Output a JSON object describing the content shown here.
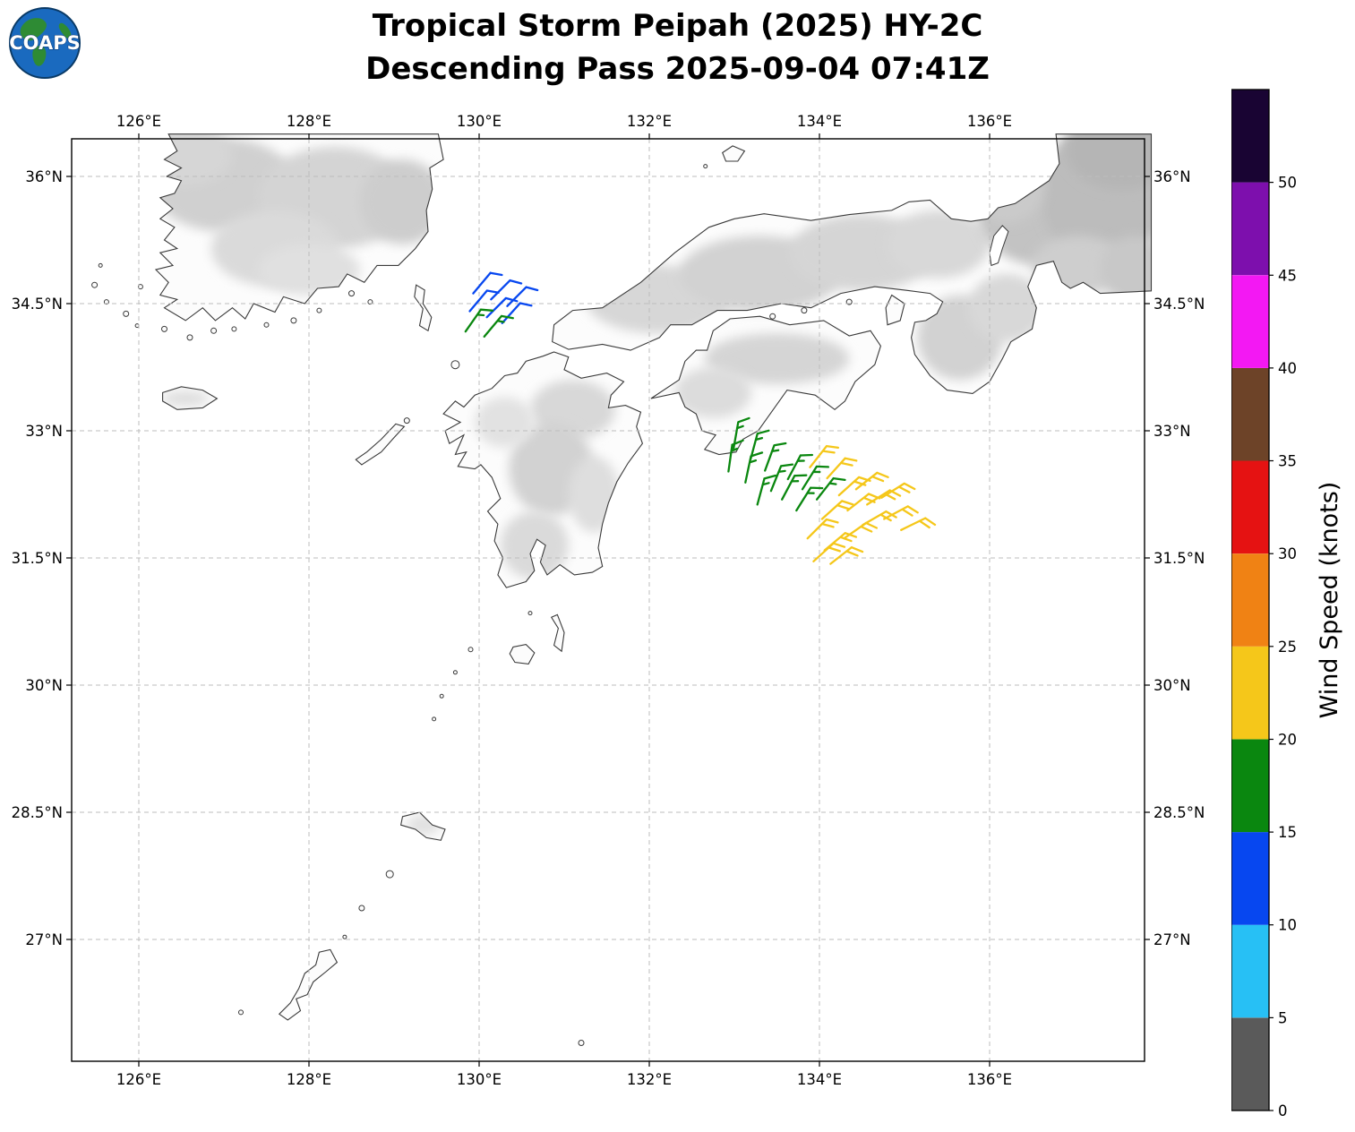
{
  "header": {
    "title_line1": "Tropical Storm Peipah (2025) HY-2C",
    "title_line2": "Descending Pass 2025-09-04 07:41Z"
  },
  "logo": {
    "text": "COAPS"
  },
  "map": {
    "lon_ticks": [
      {
        "lon": 126,
        "label": "126°E"
      },
      {
        "lon": 128,
        "label": "128°E"
      },
      {
        "lon": 130,
        "label": "130°E"
      },
      {
        "lon": 132,
        "label": "132°E"
      },
      {
        "lon": 134,
        "label": "134°E"
      },
      {
        "lon": 136,
        "label": "136°E"
      }
    ],
    "lat_ticks": [
      {
        "lat": 36,
        "label": "36°N"
      },
      {
        "lat": 34.5,
        "label": "34.5°N"
      },
      {
        "lat": 33,
        "label": "33°N"
      },
      {
        "lat": 31.5,
        "label": "31.5°N"
      },
      {
        "lat": 30,
        "label": "30°N"
      },
      {
        "lat": 28.5,
        "label": "28.5°N"
      },
      {
        "lat": 27,
        "label": "27°N"
      }
    ]
  },
  "colorbar": {
    "label": "Wind Speed (knots)",
    "vmin": 0,
    "vmax": 55,
    "ticks": [
      0,
      5,
      10,
      15,
      20,
      25,
      30,
      35,
      40,
      45,
      50
    ],
    "segments": [
      {
        "from": 0,
        "to": 5,
        "color": "#5a5a5a"
      },
      {
        "from": 5,
        "to": 10,
        "color": "#27c0f5"
      },
      {
        "from": 10,
        "to": 15,
        "color": "#0747f0"
      },
      {
        "from": 15,
        "to": 20,
        "color": "#0a870f"
      },
      {
        "from": 20,
        "to": 25,
        "color": "#f5c71a"
      },
      {
        "from": 25,
        "to": 30,
        "color": "#f08214"
      },
      {
        "from": 30,
        "to": 35,
        "color": "#e51212"
      },
      {
        "from": 35,
        "to": 40,
        "color": "#6d4328"
      },
      {
        "from": 40,
        "to": 45,
        "color": "#f318f3"
      },
      {
        "from": 45,
        "to": 50,
        "color": "#7d0fad"
      },
      {
        "from": 50,
        "to": 55,
        "color": "#190433"
      }
    ]
  },
  "chart_data": {
    "type": "wind_barb_map",
    "title": "Tropical Storm Peipah (2025) HY-2C Descending Pass 2025-09-04 07:41Z",
    "units": "knots",
    "lon_range": [
      125.2,
      137.8
    ],
    "lat_range": [
      25.6,
      36.4
    ],
    "barbs": [
      {
        "lon": 129.93,
        "lat": 34.62,
        "knots": 10,
        "dir_from_deg": 40
      },
      {
        "lon": 130.14,
        "lat": 34.55,
        "knots": 10,
        "dir_from_deg": 45
      },
      {
        "lon": 130.33,
        "lat": 34.47,
        "knots": 10,
        "dir_from_deg": 45
      },
      {
        "lon": 129.89,
        "lat": 34.41,
        "knots": 10,
        "dir_from_deg": 40
      },
      {
        "lon": 130.09,
        "lat": 34.34,
        "knots": 10,
        "dir_from_deg": 45
      },
      {
        "lon": 130.27,
        "lat": 34.27,
        "knots": 10,
        "dir_from_deg": 42
      },
      {
        "lon": 129.84,
        "lat": 34.17,
        "knots": 15,
        "dir_from_deg": 35
      },
      {
        "lon": 130.06,
        "lat": 34.11,
        "knots": 15,
        "dir_from_deg": 40
      },
      {
        "lon": 132.99,
        "lat": 32.79,
        "knots": 15,
        "dir_from_deg": 10
      },
      {
        "lon": 133.19,
        "lat": 32.66,
        "knots": 15,
        "dir_from_deg": 15
      },
      {
        "lon": 132.93,
        "lat": 32.52,
        "knots": 15,
        "dir_from_deg": 8
      },
      {
        "lon": 133.13,
        "lat": 32.39,
        "knots": 15,
        "dir_from_deg": 12
      },
      {
        "lon": 133.36,
        "lat": 32.53,
        "knots": 15,
        "dir_from_deg": 20
      },
      {
        "lon": 133.43,
        "lat": 32.29,
        "knots": 15,
        "dir_from_deg": 22
      },
      {
        "lon": 133.27,
        "lat": 32.13,
        "knots": 15,
        "dir_from_deg": 15
      },
      {
        "lon": 133.63,
        "lat": 32.43,
        "knots": 15,
        "dir_from_deg": 28
      },
      {
        "lon": 133.56,
        "lat": 32.19,
        "knots": 15,
        "dir_from_deg": 28
      },
      {
        "lon": 133.8,
        "lat": 32.31,
        "knots": 15,
        "dir_from_deg": 32
      },
      {
        "lon": 133.73,
        "lat": 32.06,
        "knots": 15,
        "dir_from_deg": 32
      },
      {
        "lon": 133.97,
        "lat": 32.19,
        "knots": 15,
        "dir_from_deg": 38
      },
      {
        "lon": 133.89,
        "lat": 32.57,
        "knots": 20,
        "dir_from_deg": 38
      },
      {
        "lon": 134.09,
        "lat": 32.44,
        "knots": 20,
        "dir_from_deg": 42
      },
      {
        "lon": 134.03,
        "lat": 31.96,
        "knots": 20,
        "dir_from_deg": 48
      },
      {
        "lon": 134.23,
        "lat": 32.24,
        "knots": 20,
        "dir_from_deg": 48
      },
      {
        "lon": 134.43,
        "lat": 32.31,
        "knots": 20,
        "dir_from_deg": 52
      },
      {
        "lon": 134.33,
        "lat": 32.06,
        "knots": 20,
        "dir_from_deg": 52
      },
      {
        "lon": 134.56,
        "lat": 32.13,
        "knots": 20,
        "dir_from_deg": 58
      },
      {
        "lon": 134.73,
        "lat": 32.21,
        "knots": 20,
        "dir_from_deg": 58
      },
      {
        "lon": 134.51,
        "lat": 31.89,
        "knots": 20,
        "dir_from_deg": 60
      },
      {
        "lon": 134.76,
        "lat": 31.96,
        "knots": 20,
        "dir_from_deg": 62
      },
      {
        "lon": 134.96,
        "lat": 31.83,
        "knots": 20,
        "dir_from_deg": 64
      },
      {
        "lon": 133.86,
        "lat": 31.73,
        "knots": 20,
        "dir_from_deg": 45
      },
      {
        "lon": 134.06,
        "lat": 31.59,
        "knots": 20,
        "dir_from_deg": 50
      },
      {
        "lon": 134.29,
        "lat": 31.73,
        "knots": 20,
        "dir_from_deg": 55
      },
      {
        "lon": 133.93,
        "lat": 31.46,
        "knots": 20,
        "dir_from_deg": 48
      },
      {
        "lon": 134.13,
        "lat": 31.43,
        "knots": 20,
        "dir_from_deg": 52
      }
    ]
  }
}
